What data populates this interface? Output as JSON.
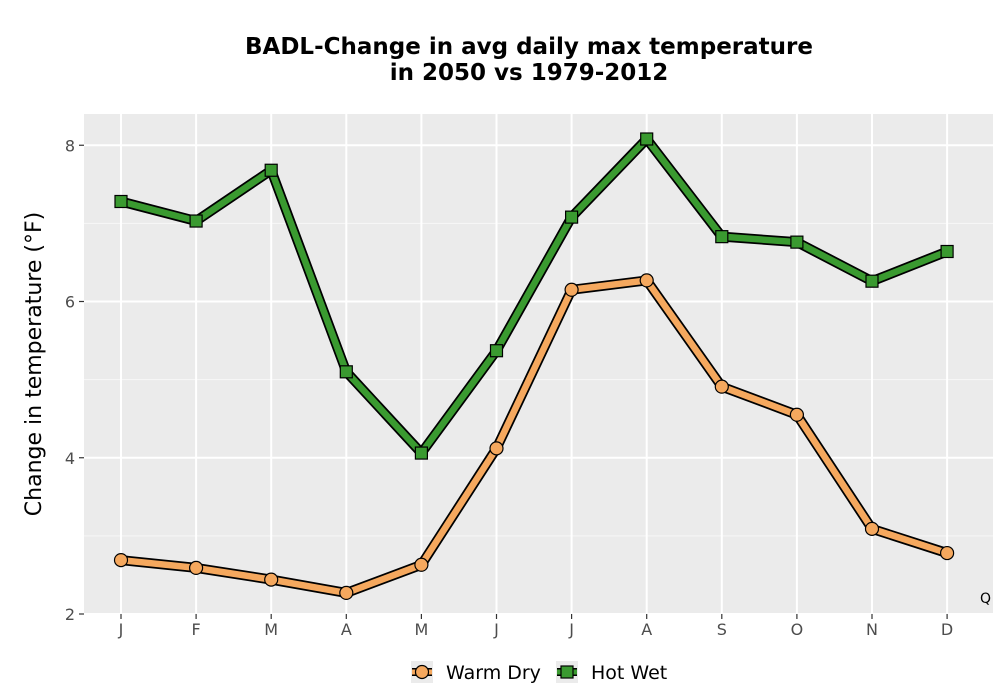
{
  "chart_data": {
    "type": "line",
    "title_line1": "BADL-Change in avg daily max temperature",
    "title_line2": "in 2050 vs 1979-2012",
    "xlabel": "",
    "ylabel": "Change in temperature (°F)",
    "categories": [
      "J",
      "F",
      "M",
      "A",
      "M",
      "J",
      "J",
      "A",
      "S",
      "O",
      "N",
      "D"
    ],
    "ylim": [
      2,
      8.4
    ],
    "yticks": [
      2,
      4,
      6,
      8
    ],
    "grid": true,
    "legend_position": "bottom",
    "series": [
      {
        "name": "Warm Dry",
        "marker": "circle",
        "color": "#f5a85e",
        "values": [
          2.69,
          2.59,
          2.44,
          2.27,
          2.63,
          4.12,
          6.15,
          6.27,
          4.91,
          4.55,
          3.09,
          2.78
        ]
      },
      {
        "name": "Hot Wet",
        "marker": "square",
        "color": "#3a9a30",
        "values": [
          7.28,
          7.03,
          7.68,
          5.1,
          4.06,
          5.37,
          7.08,
          8.08,
          6.83,
          6.76,
          6.26,
          6.64
        ]
      }
    ],
    "corner_note": "Q"
  }
}
